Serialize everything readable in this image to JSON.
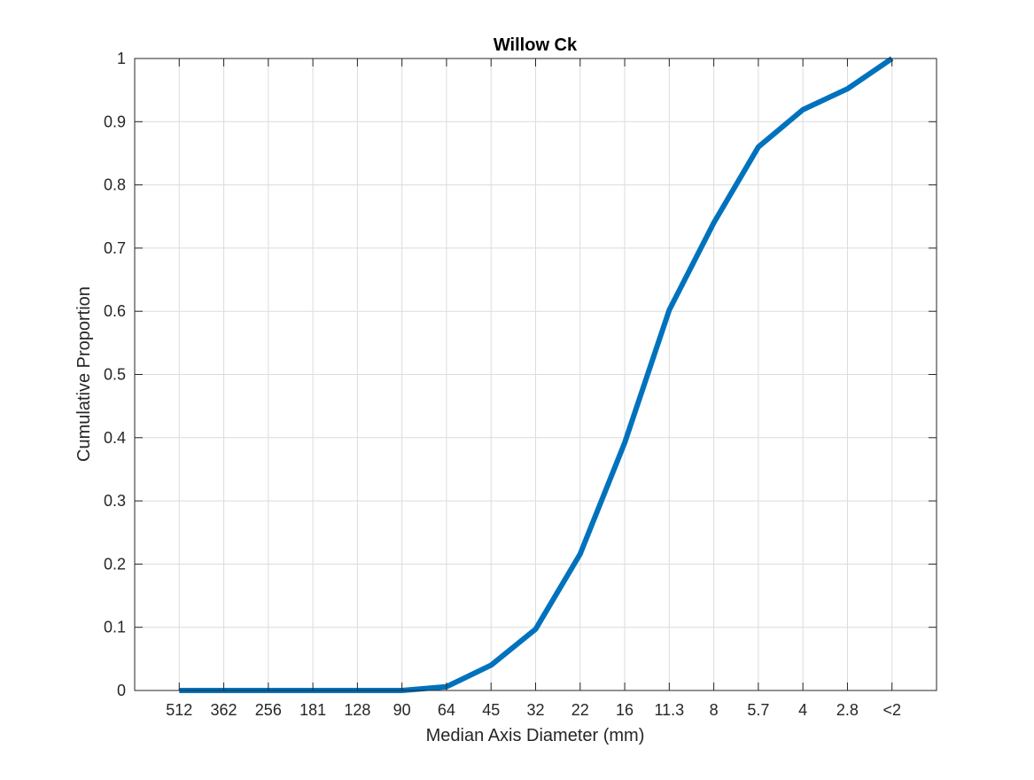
{
  "chart_data": {
    "type": "line",
    "title": "Willow Ck",
    "xlabel": "Median Axis Diameter (mm)",
    "ylabel": "Cumulative Proportion",
    "categories": [
      "512",
      "362",
      "256",
      "181",
      "128",
      "90",
      "64",
      "45",
      "32",
      "22",
      "16",
      "11.3",
      "8",
      "5.7",
      "4",
      "2.8",
      "<2"
    ],
    "series": [
      {
        "values": [
          0,
          0,
          0,
          0,
          0,
          0,
          0.006,
          0.04,
          0.097,
          0.216,
          0.392,
          0.602,
          0.74,
          0.86,
          0.919,
          0.952,
          1.0
        ]
      }
    ],
    "ylim": [
      0,
      1
    ],
    "yticks": [
      0,
      0.1,
      0.2,
      0.3,
      0.4,
      0.5,
      0.6,
      0.7,
      0.8,
      0.9,
      1
    ],
    "ytick_labels": [
      "0",
      "0.1",
      "0.2",
      "0.3",
      "0.4",
      "0.5",
      "0.6",
      "0.7",
      "0.8",
      "0.9",
      "1"
    ],
    "grid": true,
    "colors": {
      "line": "#0072BD",
      "grid": "#dcdcdc",
      "axes": "#262626"
    }
  }
}
